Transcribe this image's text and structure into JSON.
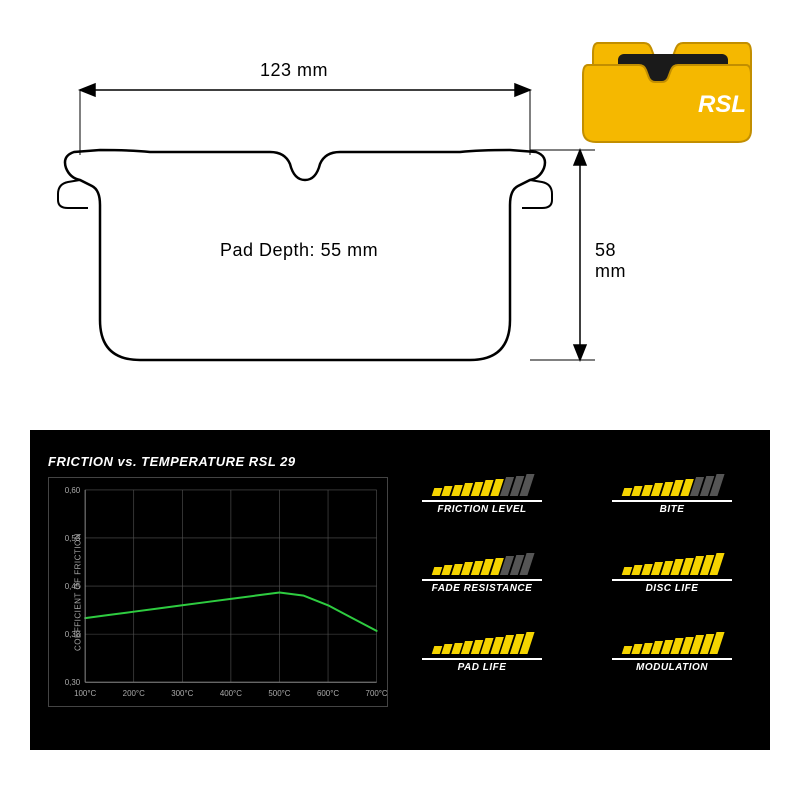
{
  "product": {
    "brand_text": "RSL",
    "pad_color": "#f5b800",
    "pad_outline": "#c28e00",
    "pad_center_color": "#1a1a1a"
  },
  "drawing": {
    "width_label": "123 mm",
    "height_label": "58 mm",
    "depth_label": "Pad Depth: 55 mm",
    "stroke": "#000000",
    "stroke_width": 2.5,
    "label_fontsize": 18
  },
  "chart": {
    "title": "FRICTION vs. TEMPERATURE RSL 29",
    "ylabel": "COEFFICIENT OF FRICTION",
    "background": "#000000",
    "grid_color": "#555555",
    "line_color": "#2ecc40",
    "line_width": 2,
    "x_ticks": [
      "100°C",
      "200°C",
      "300°C",
      "400°C",
      "500°C",
      "600°C",
      "700°C"
    ],
    "y_ticks": [
      "0,30",
      "0,38",
      "0,45",
      "0,53",
      "0,60"
    ],
    "y_min": 0.3,
    "y_max": 0.6,
    "data": [
      {
        "x": 100,
        "y": 0.4
      },
      {
        "x": 150,
        "y": 0.405
      },
      {
        "x": 200,
        "y": 0.41
      },
      {
        "x": 250,
        "y": 0.415
      },
      {
        "x": 300,
        "y": 0.42
      },
      {
        "x": 350,
        "y": 0.425
      },
      {
        "x": 400,
        "y": 0.43
      },
      {
        "x": 450,
        "y": 0.435
      },
      {
        "x": 500,
        "y": 0.44
      },
      {
        "x": 550,
        "y": 0.435
      },
      {
        "x": 600,
        "y": 0.42
      },
      {
        "x": 650,
        "y": 0.4
      },
      {
        "x": 700,
        "y": 0.38
      }
    ],
    "tick_color": "#aaaaaa",
    "tick_fontsize": 8
  },
  "ratings": {
    "bar_count": 10,
    "filled_color": "#f5d400",
    "empty_color": "#555555",
    "bar_min_height": 8,
    "bar_max_height": 22,
    "items": [
      {
        "label": "FRICTION LEVEL",
        "value": 7
      },
      {
        "label": "BITE",
        "value": 7
      },
      {
        "label": "FADE RESISTANCE",
        "value": 7
      },
      {
        "label": "DISC LIFE",
        "value": 10
      },
      {
        "label": "PAD LIFE",
        "value": 10
      },
      {
        "label": "MODULATION",
        "value": 10
      }
    ]
  }
}
